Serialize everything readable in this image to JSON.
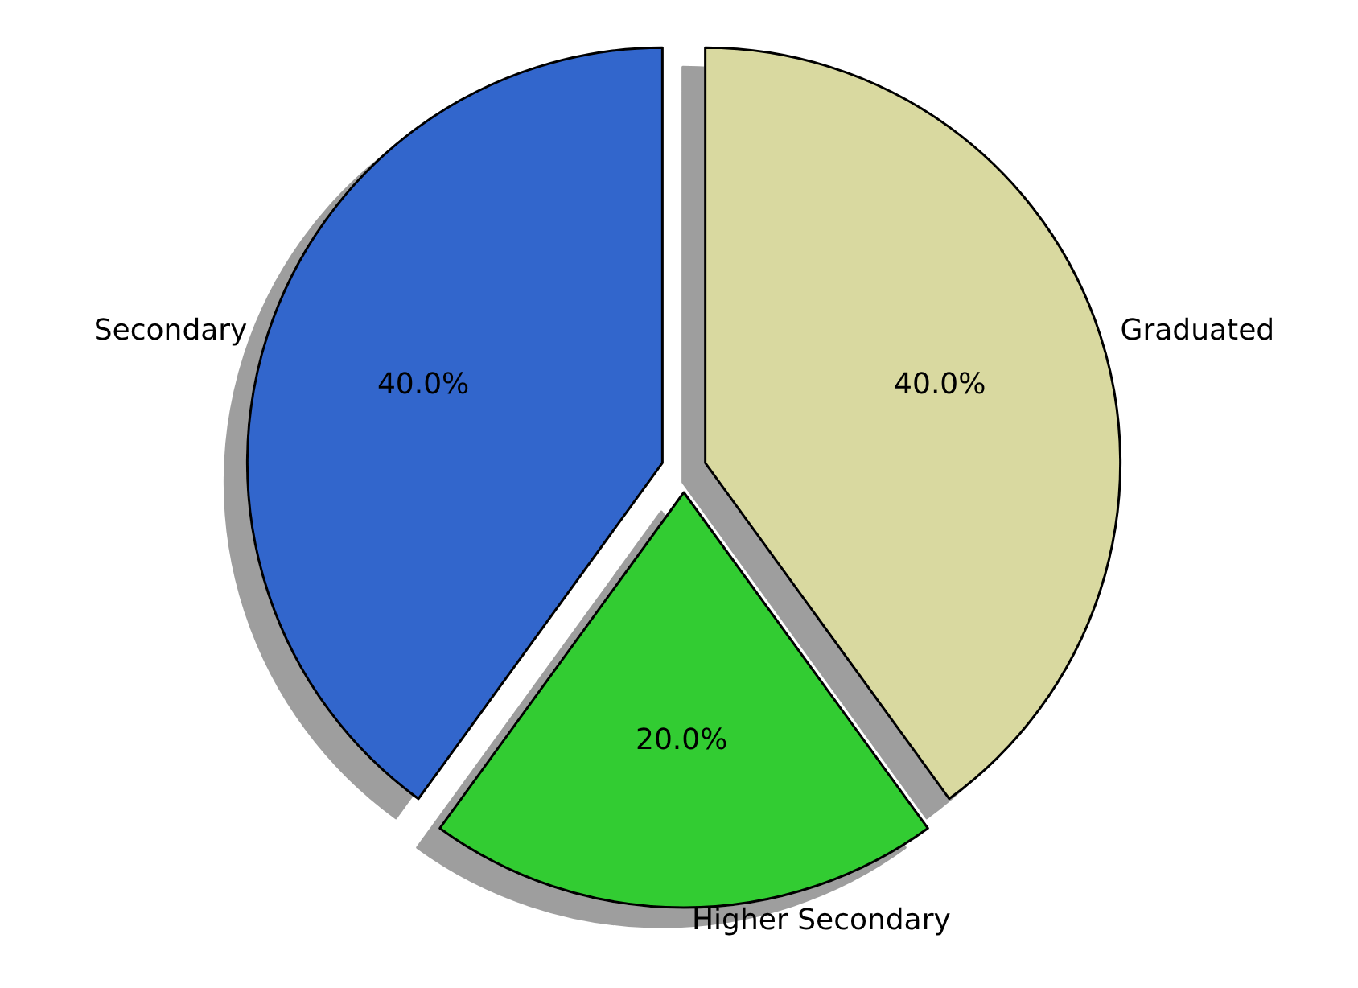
{
  "chart_data": {
    "type": "pie",
    "categories": [
      "Graduated",
      "Higher Secondary",
      "Secondary"
    ],
    "values": [
      40,
      20,
      40
    ],
    "colors": [
      "#d9d9a0",
      "#33cc33",
      "#3366cc"
    ],
    "value_labels": [
      "40.0%",
      "20.0%",
      "40.0%"
    ],
    "legend": false
  }
}
